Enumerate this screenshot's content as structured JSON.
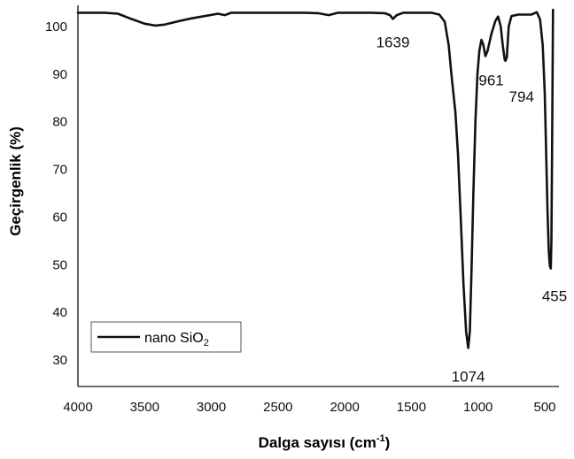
{
  "chart_data": {
    "type": "line",
    "xlabel_main": "Dalga sayısı (cm",
    "xlabel_sup": "-1",
    "xlabel_tail": ")",
    "ylabel": "Geçirgenlik (%)",
    "xlim": [
      4000,
      450
    ],
    "x_reversed": true,
    "ylim": [
      25,
      104
    ],
    "x_ticks": [
      4000,
      3500,
      3000,
      2500,
      2000,
      1500,
      1000,
      500
    ],
    "y_ticks": [
      30,
      40,
      50,
      60,
      70,
      80,
      90,
      100
    ],
    "grid": false,
    "legend_position": "bottom-left",
    "line_color": "#111111",
    "series": [
      {
        "legend_text": "nano SiO",
        "legend_sub": "2",
        "points": [
          [
            4000,
            102.9
          ],
          [
            3800,
            102.9
          ],
          [
            3700,
            102.7
          ],
          [
            3600,
            101.6
          ],
          [
            3500,
            100.6
          ],
          [
            3420,
            100.2
          ],
          [
            3350,
            100.4
          ],
          [
            3250,
            101.1
          ],
          [
            3150,
            101.7
          ],
          [
            3050,
            102.2
          ],
          [
            2950,
            102.7
          ],
          [
            2900,
            102.4
          ],
          [
            2850,
            102.9
          ],
          [
            2700,
            102.9
          ],
          [
            2500,
            102.9
          ],
          [
            2300,
            102.9
          ],
          [
            2200,
            102.8
          ],
          [
            2120,
            102.4
          ],
          [
            2050,
            102.9
          ],
          [
            1900,
            102.9
          ],
          [
            1800,
            102.9
          ],
          [
            1700,
            102.8
          ],
          [
            1660,
            102.4
          ],
          [
            1639,
            101.6
          ],
          [
            1610,
            102.4
          ],
          [
            1560,
            102.9
          ],
          [
            1450,
            102.9
          ],
          [
            1350,
            102.9
          ],
          [
            1290,
            102.5
          ],
          [
            1250,
            101.0
          ],
          [
            1220,
            96.0
          ],
          [
            1200,
            90.0
          ],
          [
            1170,
            82.0
          ],
          [
            1150,
            73.0
          ],
          [
            1130,
            60.0
          ],
          [
            1110,
            46.0
          ],
          [
            1090,
            36.0
          ],
          [
            1074,
            32.5
          ],
          [
            1062,
            36.0
          ],
          [
            1050,
            48.0
          ],
          [
            1035,
            65.0
          ],
          [
            1020,
            80.0
          ],
          [
            1005,
            90.0
          ],
          [
            990,
            95.0
          ],
          [
            975,
            97.2
          ],
          [
            961,
            96.2
          ],
          [
            945,
            93.8
          ],
          [
            930,
            94.8
          ],
          [
            900,
            98.5
          ],
          [
            870,
            101.2
          ],
          [
            850,
            102.1
          ],
          [
            830,
            100.0
          ],
          [
            815,
            96.0
          ],
          [
            800,
            93.0
          ],
          [
            794,
            92.8
          ],
          [
            785,
            93.5
          ],
          [
            770,
            100.0
          ],
          [
            750,
            102.2
          ],
          [
            700,
            102.5
          ],
          [
            650,
            102.5
          ],
          [
            600,
            102.5
          ],
          [
            560,
            103.0
          ],
          [
            535,
            101.5
          ],
          [
            515,
            96.0
          ],
          [
            500,
            86.0
          ],
          [
            490,
            74.0
          ],
          [
            480,
            62.0
          ],
          [
            470,
            53.0
          ],
          [
            462,
            49.8
          ],
          [
            455,
            49.2
          ],
          [
            450,
            55.0
          ],
          [
            445,
            75.0
          ],
          [
            440,
            95.0
          ],
          [
            438,
            103.5
          ]
        ]
      }
    ],
    "annotations": [
      {
        "text": "1639",
        "x": 1639,
        "y": 101.6
      },
      {
        "text": "961",
        "x": 961,
        "y": 93.8
      },
      {
        "text": "794",
        "x": 794,
        "y": 92.8
      },
      {
        "text": "1074",
        "x": 1074,
        "y": 32.5
      },
      {
        "text": "455",
        "x": 455,
        "y": 49.2
      }
    ]
  }
}
